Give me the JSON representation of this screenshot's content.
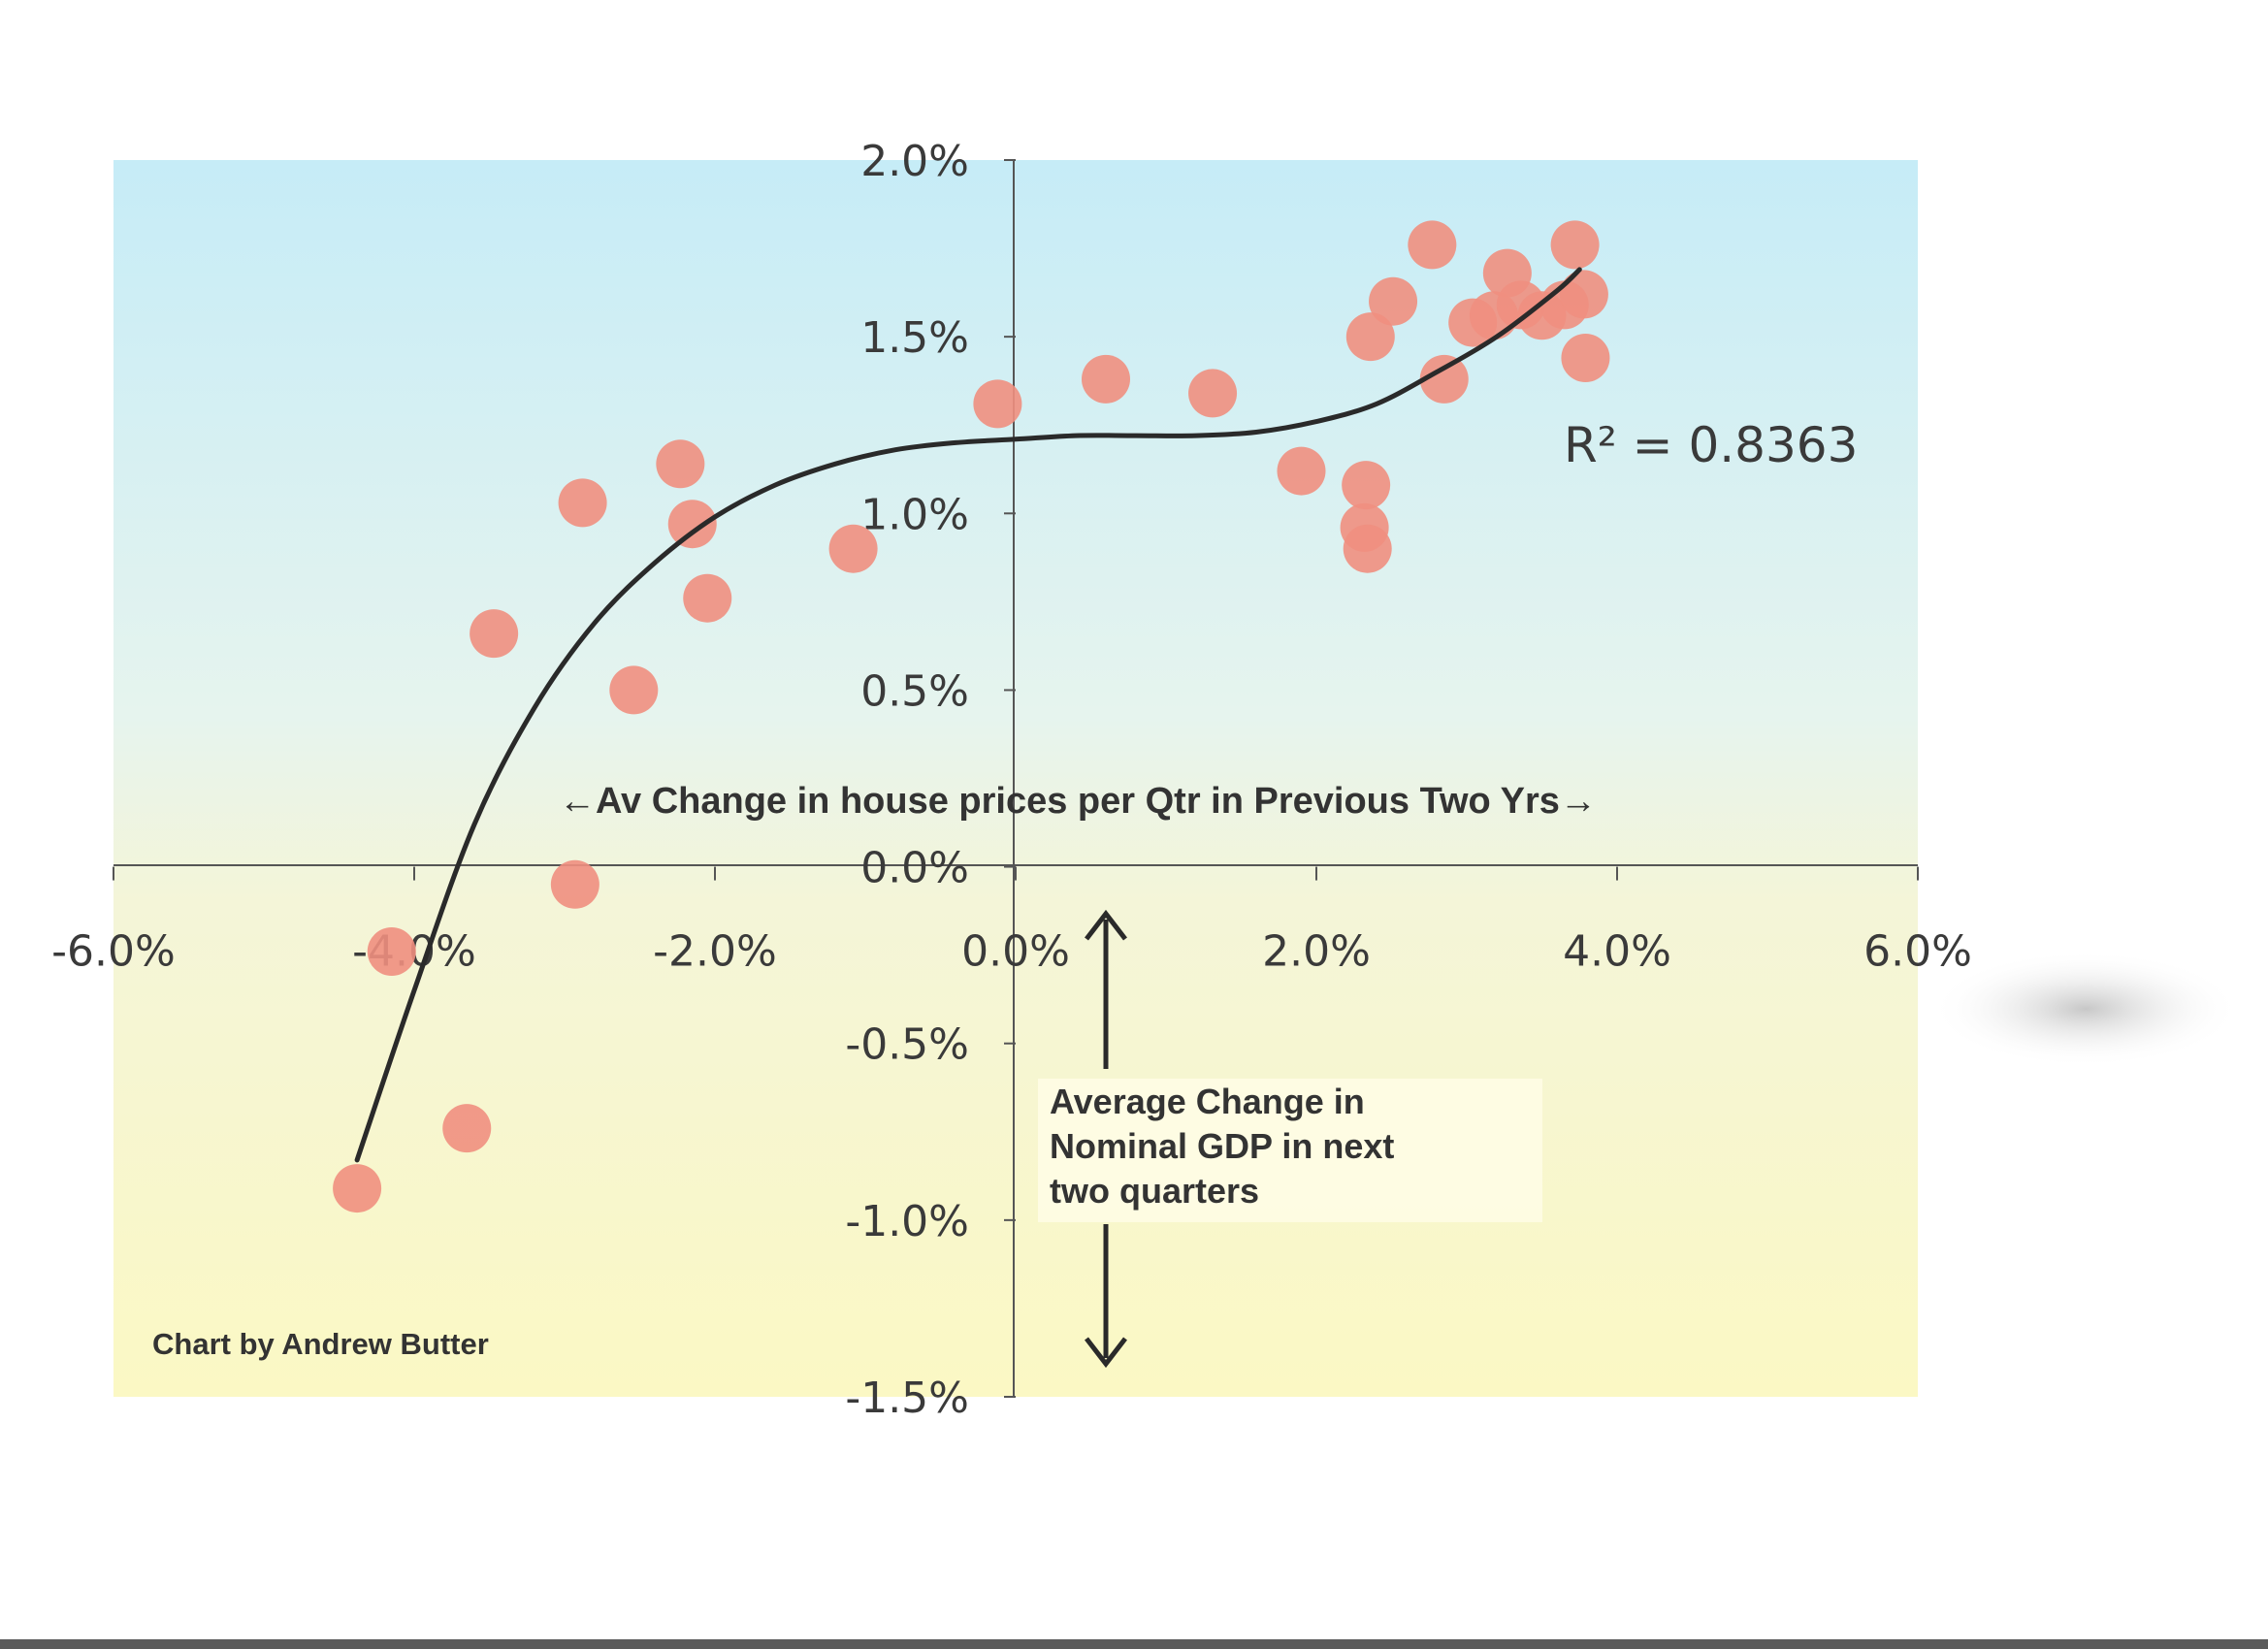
{
  "chart_data": {
    "type": "scatter",
    "xlim": [
      -0.06,
      0.06
    ],
    "ylim": [
      -0.015,
      0.02
    ],
    "x_ticks": [
      {
        "value": -0.06,
        "label": "-6.0%"
      },
      {
        "value": -0.04,
        "label": "-4.0%"
      },
      {
        "value": -0.02,
        "label": "-2.0%"
      },
      {
        "value": 0.0,
        "label": "0.0%"
      },
      {
        "value": 0.02,
        "label": "2.0%"
      },
      {
        "value": 0.04,
        "label": "4.0%"
      },
      {
        "value": 0.06,
        "label": "6.0%"
      }
    ],
    "y_ticks": [
      {
        "value": 0.02,
        "label": "2.0%"
      },
      {
        "value": 0.015,
        "label": "1.5%"
      },
      {
        "value": 0.01,
        "label": "1.0%"
      },
      {
        "value": 0.005,
        "label": "0.5%"
      },
      {
        "value": 0.0,
        "label": "0.0%"
      },
      {
        "value": -0.005,
        "label": "-0.5%"
      },
      {
        "value": -0.01,
        "label": "-1.0%"
      },
      {
        "value": -0.015,
        "label": "-1.5%"
      }
    ],
    "xlabel": "←Av Change in house prices per Qtr in Previous Two Yrs→",
    "ylabel": "Average Change in Nominal GDP in next two quarters",
    "annotation_r2": "R² = 0.8363",
    "credit": "Chart by Andrew Butter",
    "points": [
      {
        "x": -0.0438,
        "y": -0.0091
      },
      {
        "x": -0.0415,
        "y": -0.0024
      },
      {
        "x": -0.0365,
        "y": -0.0074
      },
      {
        "x": -0.0347,
        "y": 0.0066
      },
      {
        "x": -0.0288,
        "y": 0.0103
      },
      {
        "x": -0.0293,
        "y": -0.0005
      },
      {
        "x": -0.0254,
        "y": 0.005
      },
      {
        "x": -0.0223,
        "y": 0.0114
      },
      {
        "x": -0.0215,
        "y": 0.0097
      },
      {
        "x": -0.0205,
        "y": 0.0076
      },
      {
        "x": -0.0108,
        "y": 0.009
      },
      {
        "x": -0.0012,
        "y": 0.0131
      },
      {
        "x": 0.006,
        "y": 0.0138
      },
      {
        "x": 0.0131,
        "y": 0.0134
      },
      {
        "x": 0.019,
        "y": 0.0112
      },
      {
        "x": 0.0233,
        "y": 0.0108
      },
      {
        "x": 0.0232,
        "y": 0.0096
      },
      {
        "x": 0.0234,
        "y": 0.009
      },
      {
        "x": 0.0236,
        "y": 0.015
      },
      {
        "x": 0.0251,
        "y": 0.016
      },
      {
        "x": 0.0277,
        "y": 0.0176
      },
      {
        "x": 0.0285,
        "y": 0.0138
      },
      {
        "x": 0.0304,
        "y": 0.0154
      },
      {
        "x": 0.0318,
        "y": 0.0156
      },
      {
        "x": 0.0327,
        "y": 0.0168
      },
      {
        "x": 0.0336,
        "y": 0.0159
      },
      {
        "x": 0.035,
        "y": 0.0156
      },
      {
        "x": 0.0365,
        "y": 0.0159
      },
      {
        "x": 0.0372,
        "y": 0.0176
      },
      {
        "x": 0.0378,
        "y": 0.0162
      },
      {
        "x": 0.0379,
        "y": 0.0144
      }
    ],
    "trendline": {
      "type": "polynomial",
      "x": [
        -0.0438,
        -0.04,
        -0.036,
        -0.032,
        -0.028,
        -0.024,
        -0.02,
        -0.016,
        -0.012,
        -0.008,
        -0.004,
        0.0,
        0.004,
        0.008,
        0.012,
        0.016,
        0.02,
        0.024,
        0.028,
        0.032,
        0.036,
        0.0375
      ],
      "y": [
        -0.0083,
        -0.0035,
        0.0012,
        0.0045,
        0.0069,
        0.0086,
        0.0099,
        0.0108,
        0.0114,
        0.0118,
        0.012,
        0.0121,
        0.0122,
        0.0122,
        0.0122,
        0.0123,
        0.0126,
        0.0131,
        0.014,
        0.015,
        0.0163,
        0.0169
      ]
    },
    "colors": {
      "marker": "#ef8f7f",
      "trend": "#2a2a2a",
      "plot_bg_top": "#c6ecf7",
      "plot_bg_mid": "#eef6e8",
      "plot_bg_bottom": "#fbf8c4"
    },
    "grid": false,
    "legend": "none"
  }
}
